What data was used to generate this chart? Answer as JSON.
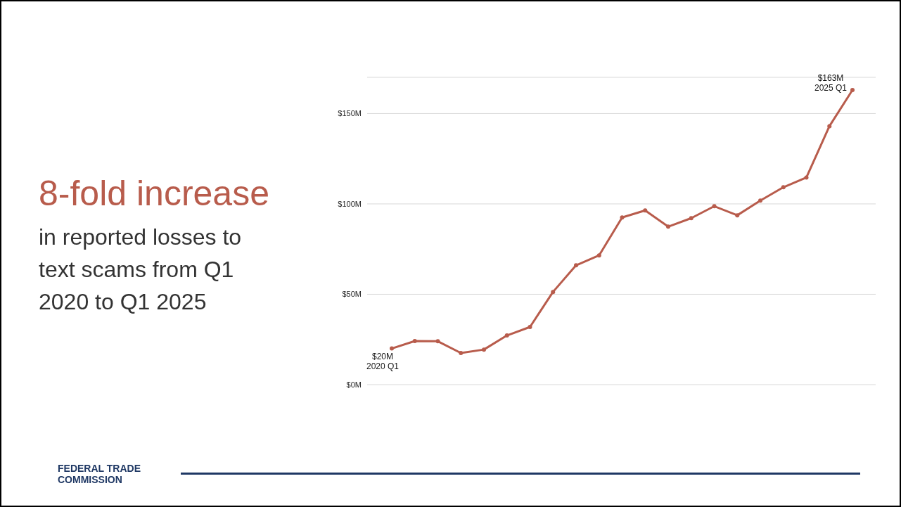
{
  "chart_data": {
    "type": "line",
    "title": "8-fold increase",
    "subtitle": "in reported losses to text scams from Q1 2020 to Q1 2025",
    "annotations": [
      "FEDERAL TRADE COMMISSION",
      "2020 Q1",
      "2025 Q1"
    ],
    "categories": [
      null,
      null,
      null,
      null,
      null,
      null,
      null,
      null,
      null,
      null,
      null,
      null,
      null,
      null,
      null,
      null,
      null,
      null,
      null,
      null,
      null
    ],
    "series": [
      {
        "color": "#b85c4c",
        "values": [
          20,
          24.1,
          24,
          17.5,
          19.4,
          27.2,
          31.9,
          51.3,
          66,
          71.5,
          92.5,
          96.4,
          87.4,
          92.1,
          98.7,
          93.7,
          101.8,
          109.2,
          114.6,
          143,
          163
        ],
        "value_labels": [
          "$20M",
          null,
          null,
          null,
          null,
          null,
          null,
          null,
          null,
          null,
          null,
          null,
          null,
          null,
          null,
          null,
          null,
          null,
          null,
          null,
          "$163M"
        ]
      }
    ],
    "ylim": [
      0,
      170
    ],
    "yticks": [
      {
        "value": 0,
        "label": "$0M"
      },
      {
        "value": 50,
        "label": "$50M"
      },
      {
        "value": 100,
        "label": "$100M"
      },
      {
        "value": 150,
        "label": "$150M"
      }
    ],
    "grid": "y",
    "tick_labels": "y",
    "marker": "circle",
    "line_style": "solid",
    "legend": false
  }
}
